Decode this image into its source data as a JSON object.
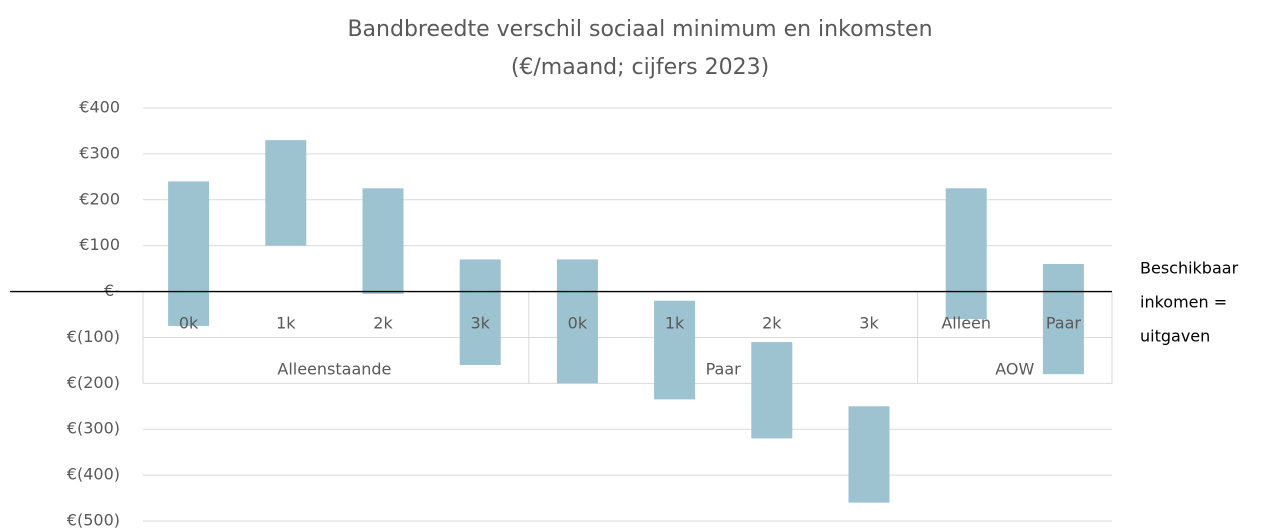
{
  "chart_data": {
    "type": "range_bar",
    "title": [
      "Bandbreedte verschil sociaal minimum en inkomsten",
      "(€/maand; cijfers 2023)"
    ],
    "categories": [
      "0k",
      "1k",
      "2k",
      "3k",
      "0k",
      "1k",
      "2k",
      "3k",
      "Alleen",
      "Paar"
    ],
    "groups": [
      {
        "name": "Alleenstaande",
        "size": 4
      },
      {
        "name": "Paar",
        "size": 4
      },
      {
        "name": "AOW",
        "size": 2
      }
    ],
    "low": [
      -75,
      100,
      -5,
      -160,
      -200,
      -235,
      -320,
      -460,
      -60,
      -180
    ],
    "high": [
      240,
      330,
      225,
      70,
      70,
      -20,
      -110,
      -250,
      225,
      60
    ],
    "color": "#9dc3d1",
    "ylim": [
      -500,
      400
    ],
    "yticks": [
      {
        "value": 400,
        "label": "€400"
      },
      {
        "value": 300,
        "label": "€300"
      },
      {
        "value": 200,
        "label": "€200"
      },
      {
        "value": 100,
        "label": "€100"
      },
      {
        "value": 0,
        "label": "€-"
      },
      {
        "value": -100,
        "label": "€(100)"
      },
      {
        "value": -200,
        "label": "€(200)"
      },
      {
        "value": -300,
        "label": "€(300)"
      },
      {
        "value": -400,
        "label": "€(400)"
      },
      {
        "value": -500,
        "label": "€(500)"
      }
    ],
    "grid": true,
    "annotation": [
      "Beschikbaar",
      "inkomen =",
      "uitgaven"
    ]
  }
}
